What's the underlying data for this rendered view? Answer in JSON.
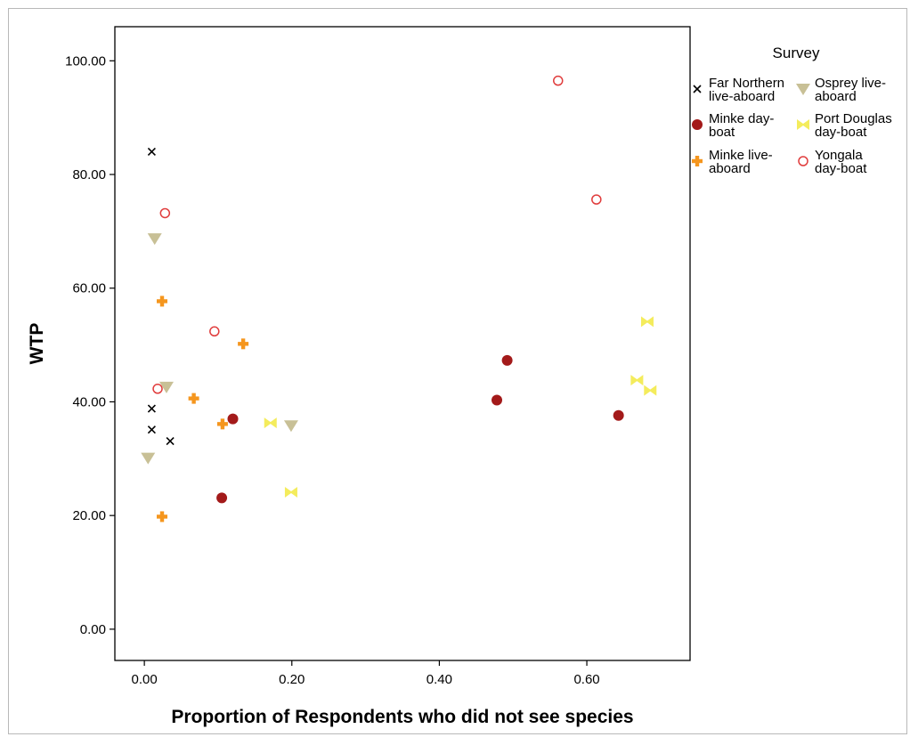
{
  "chart_data": {
    "type": "scatter",
    "xlabel": "Proportion of Respondents who did not see species",
    "ylabel": "WTP",
    "xlim": [
      -0.04,
      0.74
    ],
    "ylim": [
      -5.5,
      106
    ],
    "x_ticks": [
      "0.00",
      "0.20",
      "0.40",
      "0.60"
    ],
    "y_ticks": [
      "0.00",
      "20.00",
      "40.00",
      "60.00",
      "80.00",
      "100.00"
    ],
    "grid": false,
    "legend": {
      "title": "Survey",
      "placement": "right"
    },
    "series": [
      {
        "name": "Far Northern live-aboard",
        "label_lines": [
          "Far Northern",
          "live-aboard"
        ],
        "marker": "x",
        "color": "#000000",
        "points": [
          [
            0.01,
            84.0
          ],
          [
            0.01,
            38.8
          ],
          [
            0.01,
            35.1
          ],
          [
            0.035,
            33.1
          ]
        ]
      },
      {
        "name": "Minke day-boat",
        "label_lines": [
          "Minke day-",
          "boat"
        ],
        "marker": "filled-circle",
        "color": "#a31a1a",
        "points": [
          [
            0.105,
            23.1
          ],
          [
            0.12,
            37.0
          ],
          [
            0.478,
            40.3
          ],
          [
            0.492,
            47.3
          ],
          [
            0.643,
            37.6
          ]
        ]
      },
      {
        "name": "Minke live-aboard",
        "label_lines": [
          "Minke live-",
          "aboard"
        ],
        "marker": "plus",
        "color": "#f5961e",
        "points": [
          [
            0.024,
            57.7
          ],
          [
            0.024,
            19.8
          ],
          [
            0.067,
            40.6
          ],
          [
            0.106,
            36.1
          ],
          [
            0.134,
            50.2
          ]
        ]
      },
      {
        "name": "Osprey live-aboard",
        "label_lines": [
          "Osprey live-",
          "aboard"
        ],
        "marker": "triangle-down",
        "color": "#c8c096",
        "points": [
          [
            0.014,
            68.7
          ],
          [
            0.03,
            42.6
          ],
          [
            0.005,
            30.1
          ],
          [
            0.199,
            35.8
          ]
        ]
      },
      {
        "name": "Port Douglas day-boat",
        "label_lines": [
          "Port Douglas",
          "day-boat"
        ],
        "marker": "bowtie",
        "color": "#f4ec5c",
        "points": [
          [
            0.171,
            36.3
          ],
          [
            0.199,
            24.1
          ],
          [
            0.682,
            54.1
          ],
          [
            0.668,
            43.8
          ],
          [
            0.686,
            42.0
          ]
        ]
      },
      {
        "name": "Yongala day-boat",
        "label_lines": [
          "Yongala",
          "day-boat"
        ],
        "marker": "open-circle",
        "color": "#e03c3c",
        "points": [
          [
            0.028,
            73.2
          ],
          [
            0.018,
            42.3
          ],
          [
            0.095,
            52.4
          ],
          [
            0.561,
            96.5
          ],
          [
            0.613,
            75.6
          ]
        ]
      }
    ]
  }
}
